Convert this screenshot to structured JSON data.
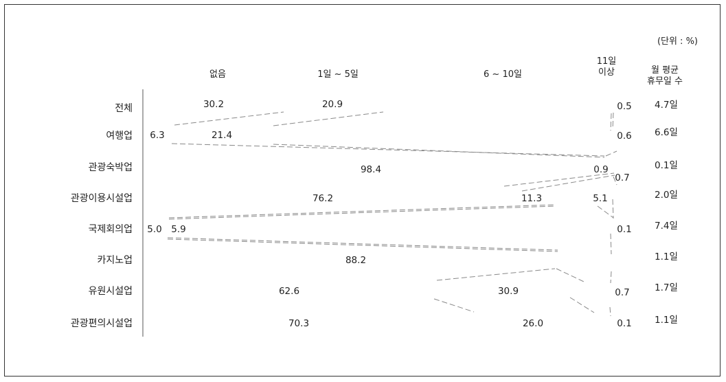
{
  "chart_data": {
    "type": "bar",
    "unit_note": "(단위 : %)",
    "columns": [
      "없음",
      "1일 ~ 5일",
      "6 ~ 10일",
      "11일\n이상",
      "월 평균\n휴무일 수"
    ],
    "categories": [
      "전체",
      "여행업",
      "관광숙박업",
      "관광이용시설업",
      "국제회의업",
      "카지노업",
      "유원시설업",
      "관광편의시설업"
    ],
    "series": [
      {
        "name": "없음",
        "values": [
          30.2,
          6.3,
          98.4,
          76.2,
          5.0,
          88.2,
          62.6,
          70.3
        ]
      },
      {
        "name": "1일 ~ 5일",
        "values": [
          20.9,
          21.4,
          null,
          11.3,
          5.9,
          null,
          30.9,
          26.0
        ]
      },
      {
        "name": "6 ~ 10일",
        "values": [
          null,
          null,
          null,
          null,
          null,
          null,
          null,
          null
        ]
      },
      {
        "name": "11일 이상",
        "values": [
          0.5,
          0.6,
          0.9,
          5.1,
          0.1,
          null,
          0.7,
          0.1
        ]
      }
    ],
    "extra_labels": [
      {
        "row": 2,
        "text": "0.7"
      }
    ],
    "averages": [
      "4.7일",
      "6.6일",
      "0.1일",
      "2.0일",
      "7.4일",
      "1.1일",
      "1.7일",
      "1.1일"
    ],
    "title": "",
    "xlabel": "",
    "ylabel": "",
    "xlim": [
      0,
      100
    ]
  }
}
